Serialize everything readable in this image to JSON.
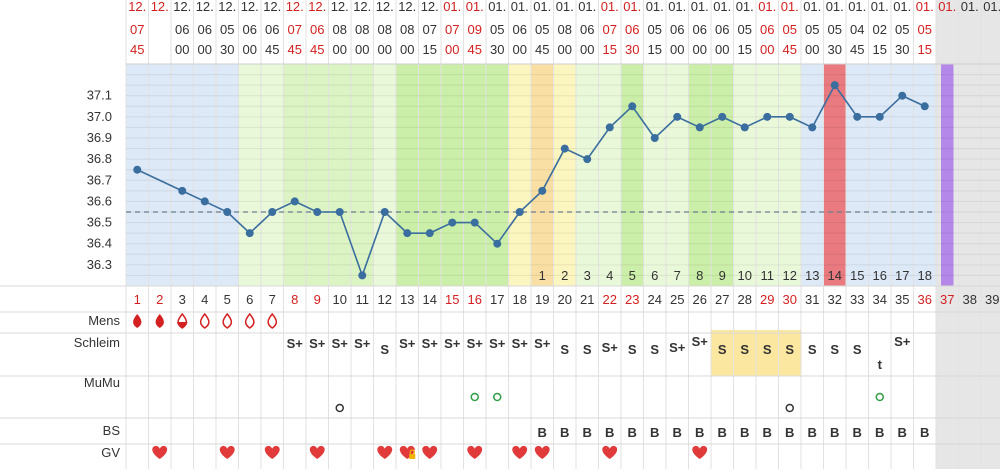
{
  "chart_data": {
    "type": "line",
    "title": "",
    "xlabel": "",
    "ylabel": "",
    "ylim": [
      36.2,
      37.25
    ],
    "y_ticks": [
      36.3,
      36.4,
      36.5,
      36.6,
      36.7,
      36.8,
      36.9,
      37.0,
      37.1
    ],
    "y_tick_labels": [
      "36.3",
      "36.4",
      "36.5",
      "36.6",
      "36.7",
      "36.8",
      "36.9",
      "37.0",
      "37.1"
    ],
    "coverline": 36.55,
    "days": [
      "1",
      "2",
      "3",
      "4",
      "5",
      "6",
      "7",
      "8",
      "9",
      "10",
      "11",
      "12",
      "13",
      "14",
      "15",
      "16",
      "17",
      "18",
      "19",
      "20",
      "21",
      "22",
      "23",
      "24",
      "25",
      "26",
      "27",
      "28",
      "29",
      "30",
      "31",
      "32",
      "33",
      "34",
      "35",
      "36",
      "37",
      "38",
      "39"
    ],
    "day_label_red": [
      true,
      true,
      false,
      false,
      false,
      false,
      false,
      true,
      true,
      false,
      false,
      false,
      false,
      false,
      true,
      true,
      false,
      false,
      false,
      false,
      false,
      true,
      true,
      false,
      false,
      false,
      false,
      false,
      true,
      true,
      false,
      false,
      false,
      false,
      false,
      true,
      true,
      false,
      false
    ],
    "date_top": [
      "12.",
      "12.",
      "12.",
      "12.",
      "12.",
      "12.",
      "12.",
      "12.",
      "12.",
      "12.",
      "12.",
      "12.",
      "12.",
      "12.",
      "01.",
      "01.",
      "01.",
      "01.",
      "01.",
      "01.",
      "01.",
      "01.",
      "01.",
      "01.",
      "01.",
      "01.",
      "01.",
      "01.",
      "01.",
      "01.",
      "01.",
      "01.",
      "01.",
      "01.",
      "01.",
      "01.",
      "01.",
      "01.",
      "01."
    ],
    "time_hour": [
      "07",
      "",
      "06",
      "06",
      "05",
      "06",
      "06",
      "07",
      "06",
      "08",
      "08",
      "08",
      "08",
      "07",
      "07",
      "09",
      "05",
      "06",
      "05",
      "08",
      "06",
      "07",
      "06",
      "05",
      "06",
      "06",
      "06",
      "05",
      "06",
      "05",
      "05",
      "05",
      "04",
      "02",
      "05",
      "05",
      "",
      "",
      ""
    ],
    "time_min": [
      "45",
      "",
      "00",
      "00",
      "30",
      "00",
      "45",
      "45",
      "45",
      "00",
      "00",
      "00",
      "00",
      "15",
      "00",
      "45",
      "30",
      "00",
      "45",
      "00",
      "00",
      "15",
      "30",
      "15",
      "00",
      "00",
      "00",
      "15",
      "00",
      "45",
      "00",
      "30",
      "45",
      "15",
      "30",
      "15",
      "",
      "",
      ""
    ],
    "time_red": [
      true,
      true,
      false,
      false,
      false,
      false,
      false,
      true,
      true,
      false,
      false,
      false,
      false,
      false,
      true,
      true,
      false,
      false,
      false,
      false,
      false,
      true,
      true,
      false,
      false,
      false,
      false,
      false,
      true,
      true,
      false,
      false,
      false,
      false,
      false,
      true,
      true,
      false,
      false
    ],
    "series": [
      {
        "x": [
          1,
          3,
          4,
          5,
          6,
          7,
          8,
          9,
          10,
          11,
          12,
          13,
          14,
          15,
          16,
          17,
          18,
          19,
          20,
          21,
          22,
          23,
          24,
          25,
          26,
          27,
          28,
          29,
          30,
          31,
          32,
          33,
          34,
          35,
          36
        ],
        "values": [
          36.75,
          36.65,
          36.6,
          36.55,
          36.45,
          36.55,
          36.6,
          36.55,
          36.55,
          36.25,
          36.55,
          36.45,
          36.45,
          36.5,
          36.5,
          36.4,
          36.55,
          36.65,
          36.85,
          36.8,
          36.95,
          37.05,
          36.9,
          37.0,
          36.95,
          37.0,
          36.95,
          37.0,
          37.0,
          36.95,
          37.15,
          37.0,
          37.0,
          37.1,
          37.05
        ]
      }
    ],
    "post_ovulation_numbers": [
      "1",
      "2",
      "3",
      "4",
      "5",
      "6",
      "7",
      "8",
      "9",
      "10",
      "11",
      "12",
      "13",
      "14",
      "15",
      "16",
      "17",
      "18"
    ],
    "rows": {
      "labels": [
        "Mens",
        "Schleim",
        "MuMu",
        "BS",
        "GV"
      ],
      "mens": [
        "drop-dark",
        "drop-dark",
        "drop-half",
        "drop-outline",
        "drop-outline",
        "drop-outline",
        "drop-outline",
        "",
        "",
        "",
        "",
        "",
        "",
        "",
        "",
        "",
        "",
        "",
        "",
        "",
        "",
        "",
        "",
        "",
        "",
        "",
        "",
        "",
        "",
        "",
        "",
        "",
        "",
        "",
        "",
        "",
        "",
        "",
        ""
      ],
      "schleim": [
        "",
        "",
        "",
        "",
        "",
        "",
        "",
        "S+",
        "S+",
        "S+",
        "S+",
        "S",
        "S+",
        "S+",
        "S+",
        "S+",
        "S+",
        "S+",
        "S+",
        "S",
        "S",
        "S+",
        "S",
        "S",
        "S+",
        "S+",
        "S",
        "S",
        "S",
        "S",
        "S",
        "S",
        "S",
        "t",
        "S+",
        "",
        "",
        "",
        ""
      ],
      "mumu": [
        "",
        "",
        "",
        "",
        "",
        "",
        "",
        "",
        "",
        "o",
        "",
        "",
        "",
        "",
        "",
        "o",
        "o",
        "",
        "",
        "",
        "",
        "",
        "",
        "",
        "",
        "",
        "",
        "",
        "",
        "o",
        "",
        "",
        "",
        "o",
        "",
        "",
        "",
        "",
        ""
      ],
      "mumu_color": [
        "",
        "",
        "",
        "",
        "",
        "",
        "",
        "",
        "",
        "#333333",
        "",
        "",
        "",
        "",
        "",
        "#2e9e44",
        "#2e9e44",
        "",
        "",
        "",
        "",
        "",
        "",
        "",
        "",
        "",
        "",
        "",
        "",
        "#333333",
        "",
        "",
        "",
        "#2e9e44",
        "",
        "",
        "",
        "",
        ""
      ],
      "bs": [
        "",
        "",
        "",
        "",
        "",
        "",
        "",
        "",
        "",
        "",
        "",
        "",
        "",
        "",
        "",
        "",
        "",
        "",
        "B",
        "B",
        "B",
        "B",
        "B",
        "B",
        "B",
        "B",
        "B",
        "B",
        "B",
        "B",
        "B",
        "B",
        "B",
        "B",
        "B",
        "B",
        "",
        "",
        ""
      ],
      "gv": [
        "",
        "heart",
        "",
        "",
        "heart",
        "",
        "heart",
        "",
        "heart",
        "",
        "",
        "heart",
        "heart-lock",
        "heart",
        "",
        "heart",
        "",
        "heart",
        "heart",
        "",
        "",
        "heart",
        "",
        "",
        "",
        "heart",
        "",
        "",
        "",
        "",
        "",
        "",
        "",
        "",
        "",
        "",
        "",
        "",
        ""
      ]
    },
    "colors": {
      "blue_phase": "#dde9f7",
      "green_light": "#eaf8da",
      "green_mid": "#dcf3c4",
      "green_strong": "#cbeea8",
      "yellow": "#fbf5c0",
      "orange": "#f9dfa3",
      "red_band": "#e87a80",
      "purple_band": "#b388e8",
      "line": "#3a6e9e",
      "red_text": "#d42020",
      "schleim_highlight": "#fbe7a0"
    }
  }
}
